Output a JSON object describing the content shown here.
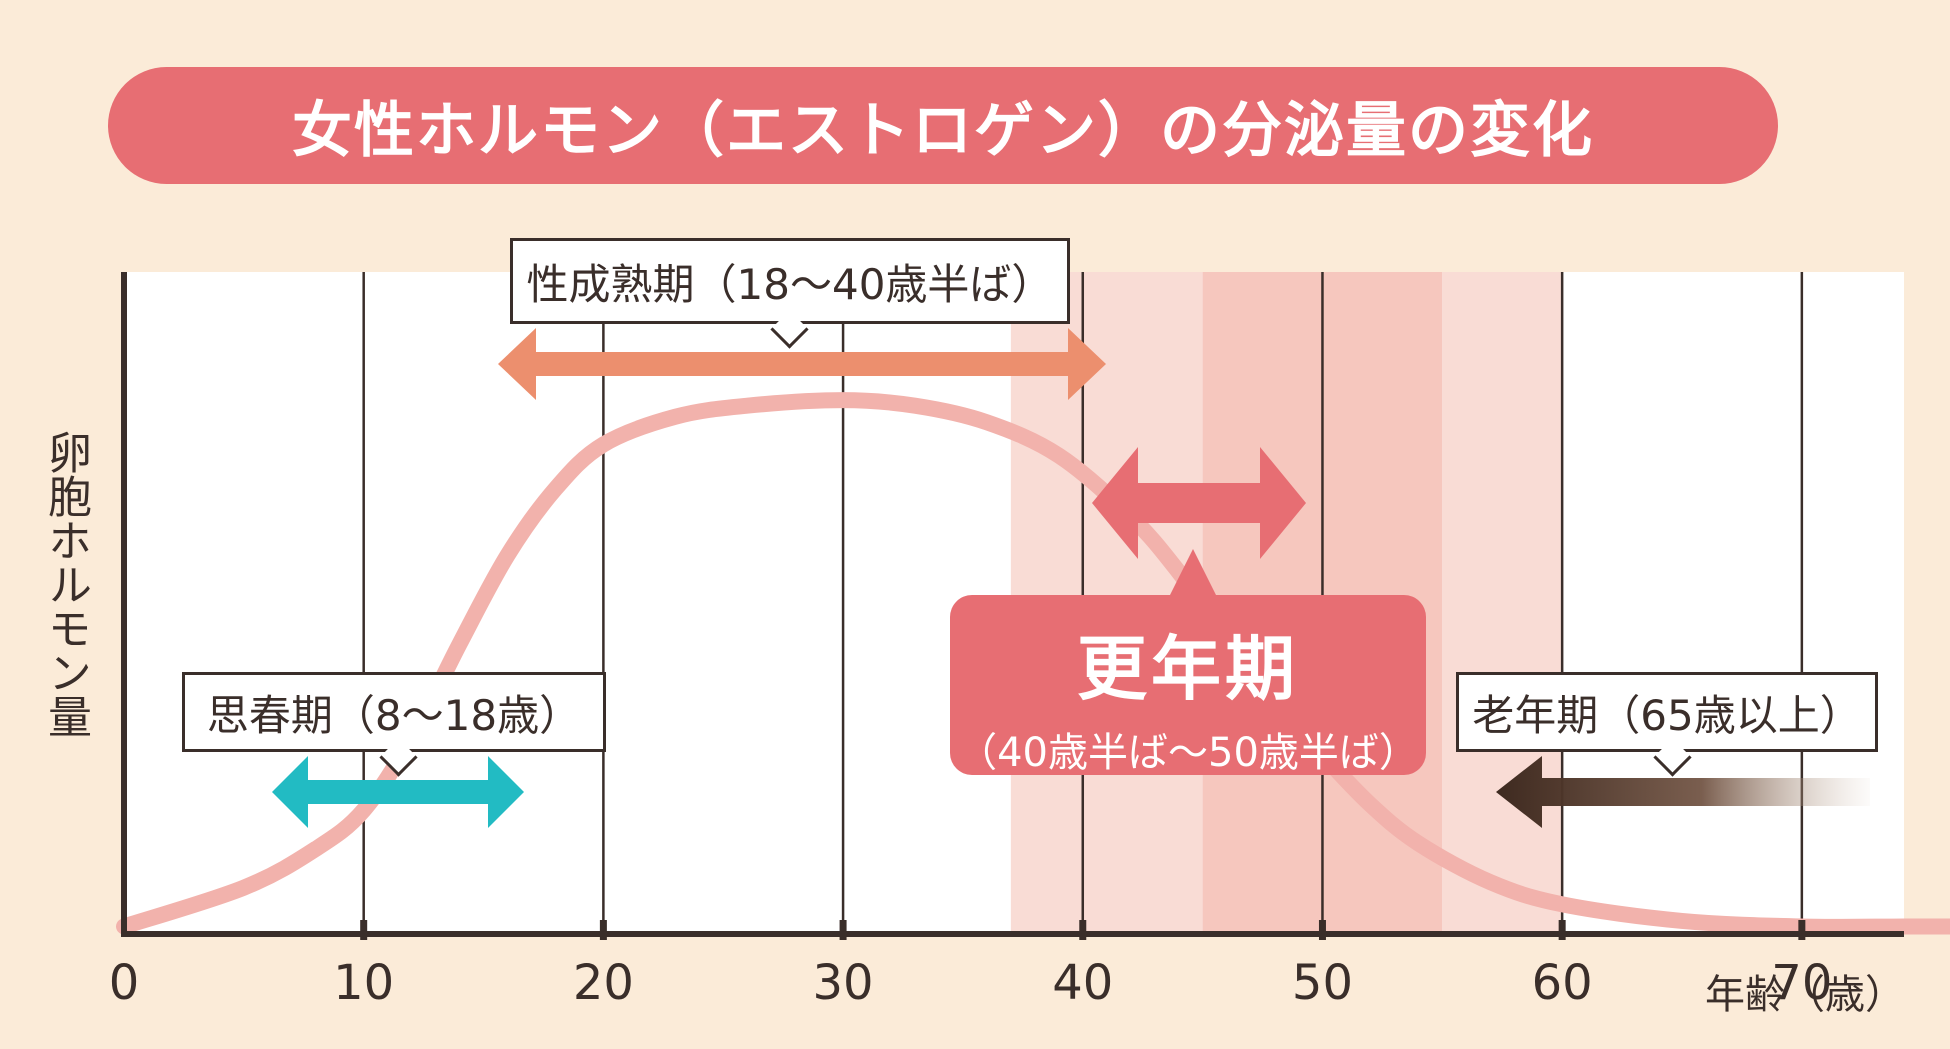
{
  "title": "女性ホルモン（エストロゲン）の分泌量の変化",
  "chart_data": {
    "type": "line",
    "ylabel": "卵胞ホルモン量",
    "xlabel": "年齢（歳）",
    "xlim": [
      0,
      82
    ],
    "xticks": [
      "0",
      "10",
      "20",
      "30",
      "40",
      "50",
      "60",
      "70"
    ],
    "xtick_values": [
      0,
      10,
      20,
      30,
      40,
      50,
      60,
      70
    ],
    "ylim": [
      0,
      100
    ],
    "series": [
      {
        "color": "#F2B2AC",
        "points": [
          [
            0,
            1
          ],
          [
            5,
            8
          ],
          [
            8,
            15
          ],
          [
            10,
            22
          ],
          [
            12,
            35
          ],
          [
            14,
            52
          ],
          [
            16,
            68
          ],
          [
            18,
            80
          ],
          [
            20,
            88
          ],
          [
            23,
            93
          ],
          [
            26,
            95
          ],
          [
            30,
            96
          ],
          [
            33,
            95
          ],
          [
            36,
            92
          ],
          [
            39,
            86
          ],
          [
            42,
            75
          ],
          [
            44,
            65
          ],
          [
            46,
            53
          ],
          [
            48,
            42
          ],
          [
            50,
            32
          ],
          [
            52,
            23
          ],
          [
            54,
            16
          ],
          [
            57,
            9
          ],
          [
            60,
            5
          ],
          [
            65,
            2
          ],
          [
            70,
            1
          ],
          [
            75,
            1
          ],
          [
            82,
            1
          ]
        ]
      }
    ],
    "shaded_bands": [
      {
        "x": [
          37,
          45
        ],
        "color": "#F9DCD5"
      },
      {
        "x": [
          45,
          55
        ],
        "color": "#F6C7BE"
      },
      {
        "x": [
          55,
          60
        ],
        "color": "#F9DCD5"
      }
    ],
    "periods": [
      {
        "label": "思春期（8〜18歳）",
        "x": [
          8,
          18
        ],
        "color": "#22BBC3"
      },
      {
        "label": "性成熟期（18〜40歳半ば）",
        "x": [
          18,
          45
        ],
        "color": "#EC8F6E"
      },
      {
        "label": "更年期",
        "sublabel": "（40歳半ば〜50歳半ば）",
        "x": [
          45,
          55
        ],
        "color": "#E76E73"
      },
      {
        "label": "老年期（65歳以上）",
        "x": [
          65,
          81
        ],
        "color": "#4A3528"
      }
    ]
  }
}
